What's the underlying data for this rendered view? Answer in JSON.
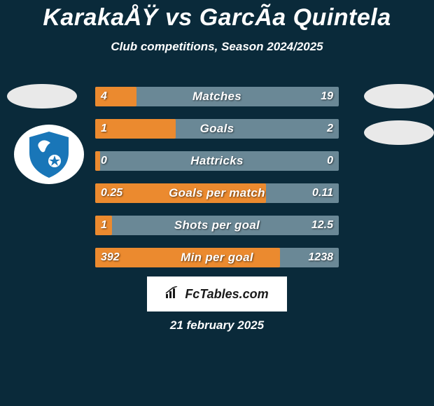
{
  "background_color": "#0a2a3a",
  "text_color": "#ffffff",
  "title": "KarakaÅŸ vs GarcÃ­a Quintela",
  "title_color": "#ffffff",
  "subtitle": "Club competitions, Season 2024/2025",
  "subtitle_color": "#ffffff",
  "bar_bg_color": "#6a8896",
  "bar_fill_color": "#eb8a2f",
  "avatar_left_bg": "#e9e9e9",
  "avatar_right_bg": "#e9e9e9",
  "club_logo_bg": "#ffffff",
  "shield_color": "#1976b8",
  "shield_accent": "#ffffff",
  "bars": [
    {
      "label": "Matches",
      "left": "4",
      "right": "19",
      "fill_pct": 17
    },
    {
      "label": "Goals",
      "left": "1",
      "right": "2",
      "fill_pct": 33
    },
    {
      "label": "Hattricks",
      "left": "0",
      "right": "0",
      "fill_pct": 2
    },
    {
      "label": "Goals per match",
      "left": "0.25",
      "right": "0.11",
      "fill_pct": 70
    },
    {
      "label": "Shots per goal",
      "left": "1",
      "right": "12.5",
      "fill_pct": 7
    },
    {
      "label": "Min per goal",
      "left": "392",
      "right": "1238",
      "fill_pct": 76
    }
  ],
  "footer_badge": {
    "bg_color": "#ffffff",
    "text_color": "#1a1a1a",
    "icon_color": "#1a1a1a",
    "text": "FcTables.com"
  },
  "date_text": "21 february 2025",
  "date_color": "#ffffff"
}
